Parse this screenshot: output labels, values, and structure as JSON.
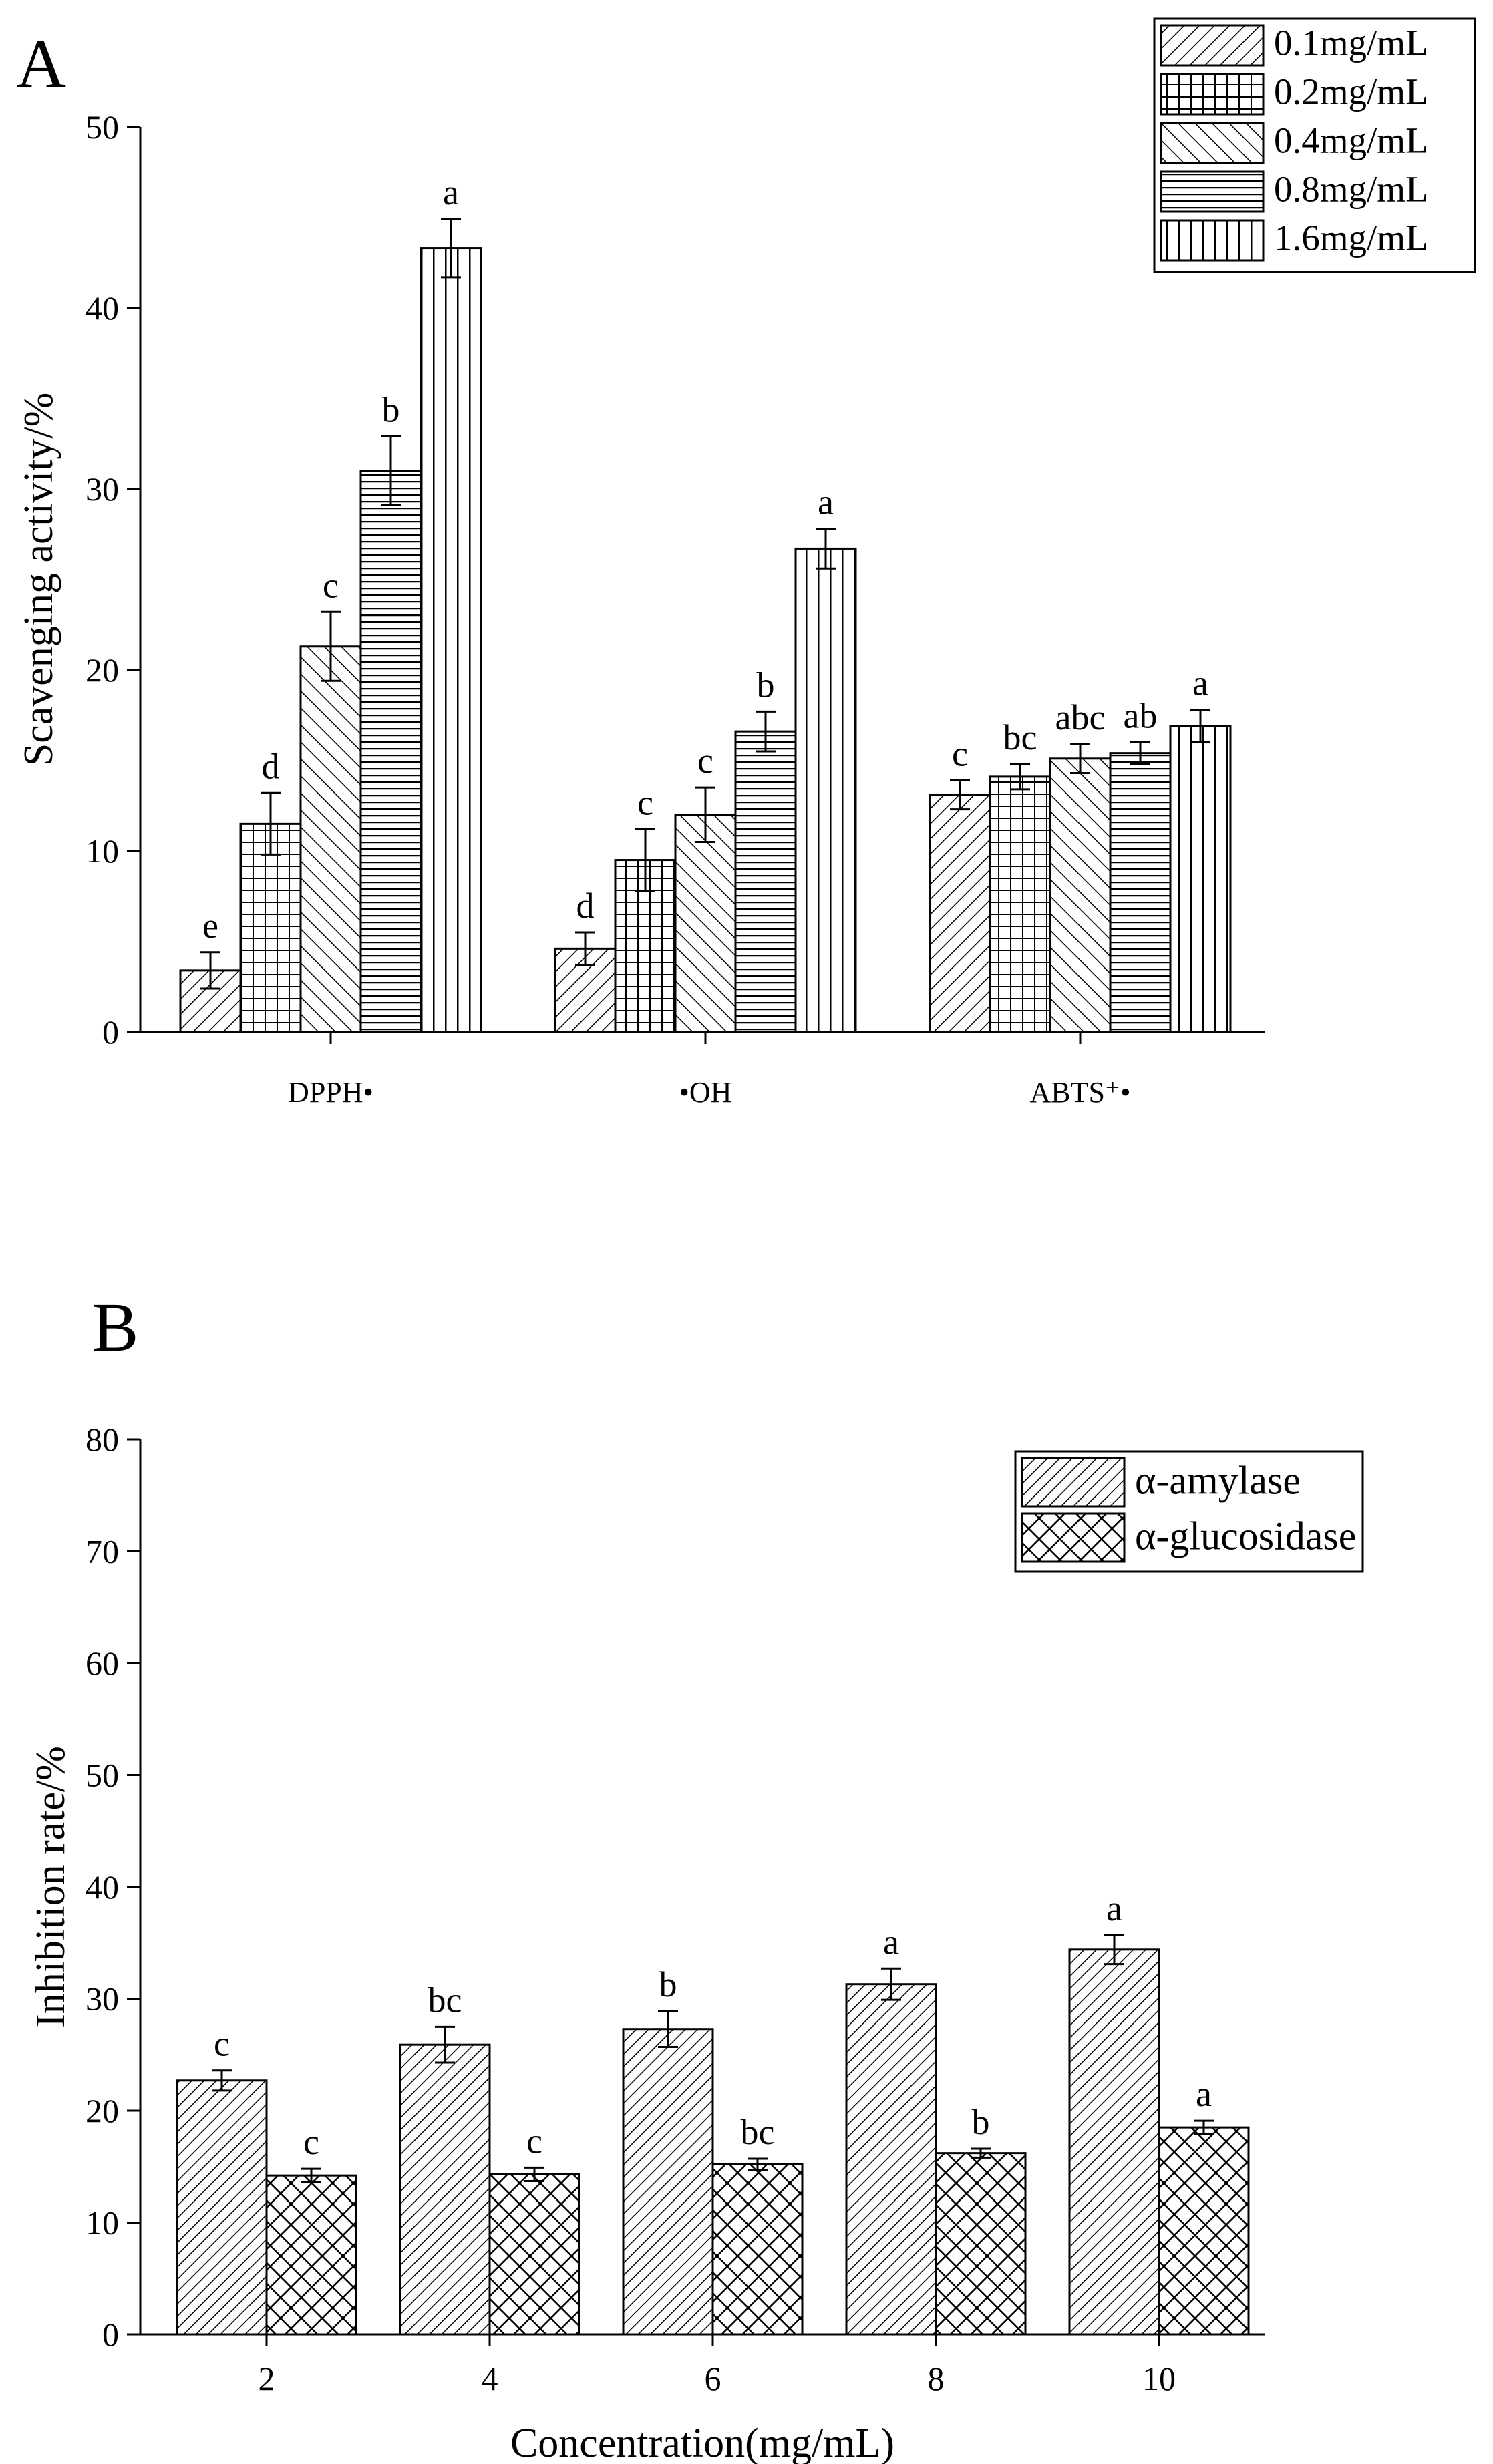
{
  "chart_data": [
    {
      "panel_label": "A",
      "type": "bar",
      "title": "",
      "xlabel": "",
      "ylabel": "Scavenging activity/%",
      "ylim": [
        0,
        50
      ],
      "yticks": [
        0,
        10,
        20,
        30,
        40,
        50
      ],
      "categories": [
        "DPPH•",
        "•OH",
        "ABTS⁺•"
      ],
      "legend_position": "top-right",
      "series": [
        {
          "name": "0.1mg/mL",
          "pattern": "diag-fwd",
          "values": [
            3.4,
            4.6,
            13.1
          ],
          "errors": [
            1.0,
            0.9,
            0.8
          ],
          "letters": [
            "e",
            "d",
            "c"
          ]
        },
        {
          "name": "0.2mg/mL",
          "pattern": "grid",
          "values": [
            11.5,
            9.5,
            14.1
          ],
          "errors": [
            1.7,
            1.7,
            0.7
          ],
          "letters": [
            "d",
            "c",
            "bc"
          ]
        },
        {
          "name": "0.4mg/mL",
          "pattern": "diag-back",
          "values": [
            21.3,
            12.0,
            15.1
          ],
          "errors": [
            1.9,
            1.5,
            0.8
          ],
          "letters": [
            "c",
            "c",
            "abc"
          ]
        },
        {
          "name": "0.8mg/mL",
          "pattern": "horiz",
          "values": [
            31.0,
            16.6,
            15.4
          ],
          "errors": [
            1.9,
            1.1,
            0.6
          ],
          "letters": [
            "b",
            "b",
            "ab"
          ]
        },
        {
          "name": "1.6mg/mL",
          "pattern": "vert",
          "values": [
            43.3,
            26.7,
            16.9
          ],
          "errors": [
            1.6,
            1.1,
            0.9
          ],
          "letters": [
            "a",
            "a",
            "a"
          ]
        }
      ]
    },
    {
      "panel_label": "B",
      "type": "bar",
      "title": "",
      "xlabel": "Concentration(mg/mL)",
      "ylabel": "Inhibition rate/%",
      "ylim": [
        0,
        80
      ],
      "yticks": [
        0,
        10,
        20,
        30,
        40,
        50,
        60,
        70,
        80
      ],
      "categories": [
        "2",
        "4",
        "6",
        "8",
        "10"
      ],
      "legend_position": "top-right",
      "series": [
        {
          "name": "α-amylase",
          "pattern": "diag-fwd-dense",
          "values": [
            22.7,
            25.9,
            27.3,
            31.3,
            34.4
          ],
          "errors": [
            0.9,
            1.6,
            1.6,
            1.4,
            1.3
          ],
          "letters": [
            "c",
            "bc",
            "b",
            "a",
            "a"
          ]
        },
        {
          "name": "α-glucosidase",
          "pattern": "cross",
          "values": [
            14.2,
            14.3,
            15.2,
            16.2,
            18.5
          ],
          "errors": [
            0.6,
            0.6,
            0.5,
            0.4,
            0.6
          ],
          "letters": [
            "c",
            "c",
            "bc",
            "b",
            "a"
          ]
        }
      ]
    }
  ]
}
